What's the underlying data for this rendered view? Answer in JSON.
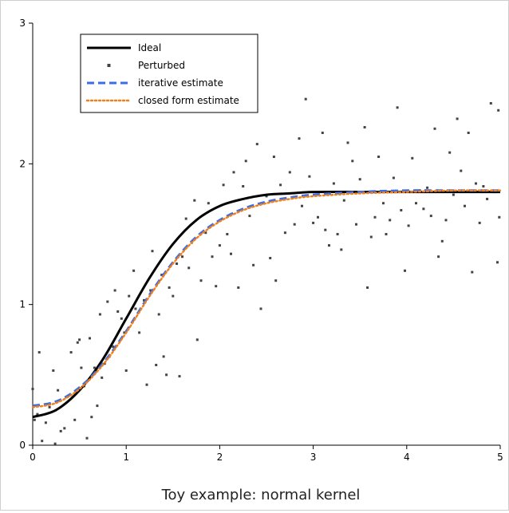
{
  "chart_data": {
    "type": "line",
    "title": "",
    "xlabel": "Toy example:  normal kernel",
    "ylabel": "",
    "xlim": [
      0,
      5
    ],
    "ylim": [
      0,
      3
    ],
    "xticks": [
      0,
      1,
      2,
      3,
      4,
      5
    ],
    "yticks": [
      0,
      1,
      2,
      3
    ],
    "xtick_labels": [
      "0",
      "1",
      "2",
      "3",
      "4",
      "5"
    ],
    "ytick_labels": [
      "0",
      "1",
      "2",
      "3"
    ],
    "grid": false,
    "legend_position": "top-left",
    "series": [
      {
        "name": "Ideal",
        "style": "solid",
        "color": "#000000",
        "x": [
          0,
          0.25,
          0.5,
          0.75,
          1.0,
          1.25,
          1.5,
          1.75,
          2.0,
          2.25,
          2.5,
          2.75,
          3.0,
          3.5,
          4.0,
          4.5,
          5.0
        ],
        "y": [
          0.2,
          0.25,
          0.39,
          0.61,
          0.9,
          1.19,
          1.43,
          1.6,
          1.7,
          1.75,
          1.78,
          1.79,
          1.8,
          1.8,
          1.8,
          1.8,
          1.8
        ]
      },
      {
        "name": "iterative estimate",
        "style": "dashed",
        "color": "#3b6ee6",
        "x": [
          0,
          0.25,
          0.5,
          0.75,
          1.0,
          1.25,
          1.5,
          1.75,
          2.0,
          2.25,
          2.5,
          2.75,
          3.0,
          3.5,
          4.0,
          4.5,
          5.0
        ],
        "y": [
          0.28,
          0.31,
          0.41,
          0.58,
          0.81,
          1.07,
          1.3,
          1.48,
          1.6,
          1.68,
          1.73,
          1.76,
          1.78,
          1.8,
          1.81,
          1.81,
          1.81
        ]
      },
      {
        "name": "closed form estimate",
        "style": "dotted",
        "color": "#f07f1e",
        "x": [
          0,
          0.25,
          0.5,
          0.75,
          1.0,
          1.25,
          1.5,
          1.75,
          2.0,
          2.25,
          2.5,
          2.75,
          3.0,
          3.5,
          4.0,
          4.5,
          5.0
        ],
        "y": [
          0.27,
          0.3,
          0.4,
          0.57,
          0.8,
          1.06,
          1.29,
          1.47,
          1.59,
          1.67,
          1.72,
          1.75,
          1.77,
          1.79,
          1.8,
          1.81,
          1.81
        ]
      }
    ],
    "scatter": {
      "name": "Perturbed",
      "color": "#444444",
      "points": [
        [
          0.0,
          0.4
        ],
        [
          0.02,
          0.18
        ],
        [
          0.05,
          0.22
        ],
        [
          0.07,
          0.66
        ],
        [
          0.1,
          0.03
        ],
        [
          0.14,
          0.16
        ],
        [
          0.18,
          0.27
        ],
        [
          0.22,
          0.53
        ],
        [
          0.24,
          0.01
        ],
        [
          0.27,
          0.39
        ],
        [
          0.3,
          0.1
        ],
        [
          0.34,
          0.12
        ],
        [
          0.38,
          0.35
        ],
        [
          0.41,
          0.66
        ],
        [
          0.45,
          0.18
        ],
        [
          0.48,
          0.73
        ],
        [
          0.5,
          0.75
        ],
        [
          0.52,
          0.55
        ],
        [
          0.55,
          0.42
        ],
        [
          0.58,
          0.05
        ],
        [
          0.61,
          0.76
        ],
        [
          0.63,
          0.2
        ],
        [
          0.66,
          0.55
        ],
        [
          0.69,
          0.28
        ],
        [
          0.72,
          0.93
        ],
        [
          0.74,
          0.48
        ],
        [
          0.77,
          0.58
        ],
        [
          0.8,
          1.02
        ],
        [
          0.82,
          0.63
        ],
        [
          0.86,
          0.7
        ],
        [
          0.88,
          1.1
        ],
        [
          0.91,
          0.95
        ],
        [
          0.95,
          0.9
        ],
        [
          0.98,
          0.8
        ],
        [
          1.0,
          0.53
        ],
        [
          1.03,
          1.06
        ],
        [
          1.08,
          1.24
        ],
        [
          1.1,
          0.97
        ],
        [
          1.14,
          0.8
        ],
        [
          1.19,
          1.03
        ],
        [
          1.22,
          0.43
        ],
        [
          1.26,
          1.1
        ],
        [
          1.28,
          1.38
        ],
        [
          1.32,
          0.57
        ],
        [
          1.35,
          0.93
        ],
        [
          1.38,
          1.21
        ],
        [
          1.4,
          0.63
        ],
        [
          1.43,
          0.5
        ],
        [
          1.46,
          1.12
        ],
        [
          1.5,
          1.06
        ],
        [
          1.54,
          1.29
        ],
        [
          1.57,
          0.49
        ],
        [
          1.6,
          1.34
        ],
        [
          1.64,
          1.61
        ],
        [
          1.67,
          1.26
        ],
        [
          1.7,
          1.44
        ],
        [
          1.73,
          1.74
        ],
        [
          1.76,
          0.75
        ],
        [
          1.8,
          1.17
        ],
        [
          1.85,
          1.51
        ],
        [
          1.88,
          1.72
        ],
        [
          1.92,
          1.34
        ],
        [
          1.96,
          1.13
        ],
        [
          2.0,
          1.42
        ],
        [
          2.04,
          1.85
        ],
        [
          2.08,
          1.5
        ],
        [
          2.12,
          1.36
        ],
        [
          2.15,
          1.94
        ],
        [
          2.2,
          1.12
        ],
        [
          2.25,
          1.84
        ],
        [
          2.28,
          2.02
        ],
        [
          2.32,
          1.63
        ],
        [
          2.36,
          1.28
        ],
        [
          2.4,
          2.14
        ],
        [
          2.44,
          0.97
        ],
        [
          2.47,
          1.72
        ],
        [
          2.5,
          1.77
        ],
        [
          2.54,
          1.33
        ],
        [
          2.58,
          2.05
        ],
        [
          2.6,
          1.17
        ],
        [
          2.65,
          1.85
        ],
        [
          2.7,
          1.51
        ],
        [
          2.75,
          1.94
        ],
        [
          2.8,
          1.57
        ],
        [
          2.85,
          2.18
        ],
        [
          2.88,
          1.7
        ],
        [
          2.92,
          2.46
        ],
        [
          2.96,
          1.91
        ],
        [
          3.0,
          1.58
        ],
        [
          3.05,
          1.62
        ],
        [
          3.1,
          2.22
        ],
        [
          3.13,
          1.53
        ],
        [
          3.17,
          1.42
        ],
        [
          3.22,
          1.86
        ],
        [
          3.26,
          1.5
        ],
        [
          3.3,
          1.39
        ],
        [
          3.33,
          1.74
        ],
        [
          3.37,
          2.15
        ],
        [
          3.42,
          2.02
        ],
        [
          3.46,
          1.57
        ],
        [
          3.5,
          1.89
        ],
        [
          3.55,
          2.26
        ],
        [
          3.58,
          1.12
        ],
        [
          3.62,
          1.48
        ],
        [
          3.66,
          1.62
        ],
        [
          3.7,
          2.05
        ],
        [
          3.75,
          1.72
        ],
        [
          3.78,
          1.5
        ],
        [
          3.82,
          1.6
        ],
        [
          3.86,
          1.9
        ],
        [
          3.9,
          2.4
        ],
        [
          3.94,
          1.67
        ],
        [
          3.98,
          1.24
        ],
        [
          4.02,
          1.56
        ],
        [
          4.06,
          2.04
        ],
        [
          4.1,
          1.72
        ],
        [
          4.14,
          1.81
        ],
        [
          4.18,
          1.68
        ],
        [
          4.22,
          1.83
        ],
        [
          4.26,
          1.63
        ],
        [
          4.3,
          2.25
        ],
        [
          4.34,
          1.34
        ],
        [
          4.38,
          1.45
        ],
        [
          4.42,
          1.6
        ],
        [
          4.46,
          2.08
        ],
        [
          4.5,
          1.78
        ],
        [
          4.54,
          2.32
        ],
        [
          4.58,
          1.95
        ],
        [
          4.62,
          1.7
        ],
        [
          4.66,
          2.22
        ],
        [
          4.7,
          1.23
        ],
        [
          4.74,
          1.86
        ],
        [
          4.78,
          1.58
        ],
        [
          4.82,
          1.84
        ],
        [
          4.86,
          1.75
        ],
        [
          4.9,
          2.43
        ],
        [
          4.94,
          1.8
        ],
        [
          4.97,
          1.3
        ],
        [
          4.98,
          2.38
        ],
        [
          4.99,
          1.62
        ]
      ]
    },
    "legend": [
      {
        "label": "Ideal",
        "style": "solid",
        "color": "#000000"
      },
      {
        "label": "Perturbed",
        "style": "marker",
        "color": "#444444"
      },
      {
        "label": "iterative estimate",
        "style": "dashed",
        "color": "#3b6ee6"
      },
      {
        "label": "closed form estimate",
        "style": "dotted",
        "color": "#f07f1e"
      }
    ]
  }
}
